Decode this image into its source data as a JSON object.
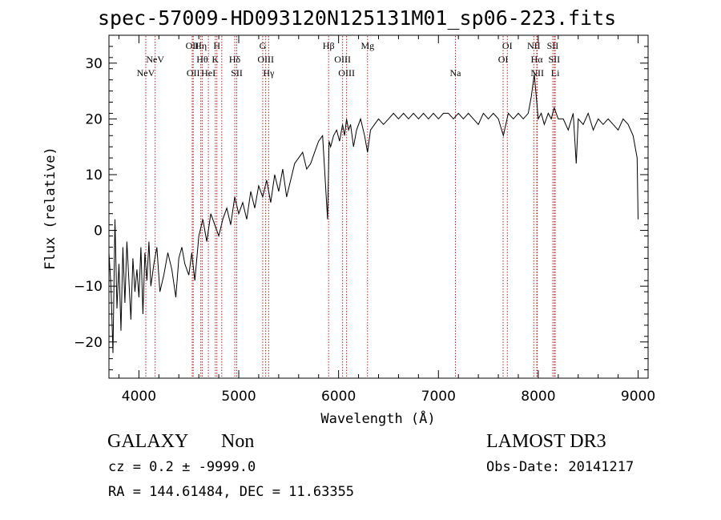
{
  "title": "spec-57009-HD093120N125131M01_sp06-223.fits",
  "footer": {
    "class": "GALAXY",
    "subclass": "Non",
    "cz": "cz = 0.2 ± -9999.0",
    "radec": "RA = 144.61484, DEC =  11.63355",
    "survey": "LAMOST DR3",
    "obsdate": "Obs-Date: 20141217"
  },
  "colors": {
    "line_marker": "#b22222",
    "spectrum": "#000000",
    "axes": "#000000"
  },
  "chart_data": {
    "type": "line",
    "title": "spec-57009-HD093120N125131M01_sp06-223.fits",
    "xlabel": "Wavelength (Å)",
    "ylabel": "Flux (relative)",
    "xlim": [
      3700,
      9100
    ],
    "ylim": [
      -26.5,
      35
    ],
    "xticks": [
      4000,
      5000,
      6000,
      7000,
      8000,
      9000
    ],
    "yticks": [
      -20,
      -10,
      0,
      10,
      20,
      30
    ],
    "series": [
      {
        "name": "flux",
        "x": [
          3700,
          3720,
          3740,
          3760,
          3780,
          3800,
          3820,
          3840,
          3860,
          3880,
          3900,
          3920,
          3940,
          3960,
          3980,
          4000,
          4020,
          4040,
          4060,
          4080,
          4100,
          4120,
          4150,
          4180,
          4210,
          4250,
          4290,
          4330,
          4370,
          4400,
          4430,
          4460,
          4500,
          4530,
          4560,
          4600,
          4640,
          4680,
          4720,
          4760,
          4800,
          4840,
          4880,
          4920,
          4960,
          5000,
          5040,
          5080,
          5120,
          5160,
          5200,
          5240,
          5280,
          5320,
          5360,
          5400,
          5440,
          5480,
          5520,
          5560,
          5600,
          5640,
          5680,
          5720,
          5760,
          5800,
          5840,
          5870,
          5890,
          5905,
          5920,
          5950,
          5980,
          6010,
          6040,
          6060,
          6080,
          6100,
          6120,
          6150,
          6180,
          6220,
          6260,
          6290,
          6320,
          6360,
          6400,
          6450,
          6500,
          6550,
          6600,
          6650,
          6700,
          6750,
          6800,
          6850,
          6900,
          6950,
          7000,
          7050,
          7100,
          7150,
          7200,
          7250,
          7300,
          7350,
          7400,
          7450,
          7500,
          7550,
          7600,
          7650,
          7700,
          7750,
          7800,
          7850,
          7900,
          7930,
          7960,
          7980,
          8000,
          8030,
          8060,
          8100,
          8130,
          8160,
          8200,
          8250,
          8300,
          8350,
          8380,
          8400,
          8450,
          8500,
          8550,
          8600,
          8650,
          8700,
          8750,
          8800,
          8850,
          8900,
          8950,
          8990,
          9000
        ],
        "values": [
          -4,
          -10,
          -22,
          2,
          -14,
          -6,
          -18,
          -3,
          -13,
          -2,
          -9,
          -16,
          -5,
          -11,
          -7,
          -12,
          -3,
          -15,
          -4,
          -9,
          -2,
          -10,
          -6,
          -3,
          -11,
          -8,
          -4,
          -7,
          -12,
          -5,
          -3,
          -6,
          -8,
          -4,
          -9,
          -1,
          2,
          -2,
          3,
          1,
          -1,
          2,
          4,
          1,
          6,
          3,
          5,
          2,
          7,
          4,
          8,
          6,
          9,
          5,
          10,
          7,
          11,
          6,
          9,
          12,
          13,
          14,
          11,
          12,
          14,
          16,
          17,
          8,
          2,
          16,
          15,
          17,
          18,
          16,
          19,
          17,
          20,
          18,
          19,
          15,
          18,
          20,
          17,
          14,
          18,
          19,
          20,
          19,
          20,
          21,
          20,
          21,
          20,
          21,
          20,
          21,
          20,
          21,
          20,
          21,
          21,
          20,
          21,
          20,
          21,
          20,
          19,
          21,
          20,
          21,
          20,
          17,
          21,
          20,
          21,
          20,
          21,
          24,
          28,
          24,
          20,
          21,
          19,
          21,
          20,
          22,
          20,
          20,
          18,
          21,
          12,
          20,
          19,
          21,
          18,
          20,
          19,
          20,
          19,
          18,
          20,
          19,
          17,
          13,
          2
        ]
      }
    ],
    "line_markers": [
      {
        "wavelength": 4069,
        "label": "NeV",
        "row": 2
      },
      {
        "wavelength": 4163,
        "label": "NeV",
        "row": 1
      },
      {
        "wavelength": 4534,
        "label": "OII",
        "row": 0
      },
      {
        "wavelength": 4544,
        "label": "OII",
        "row": 2
      },
      {
        "wavelength": 4620,
        "label": "Hη",
        "row": 0
      },
      {
        "wavelength": 4634,
        "label": "Hθ",
        "row": 1
      },
      {
        "wavelength": 4696,
        "label": "HeI",
        "row": 2
      },
      {
        "wavelength": 4781,
        "label": "H",
        "row": 0
      },
      {
        "wavelength": 4765,
        "label": "K",
        "row": 1
      },
      {
        "wavelength": 4830,
        "label": "",
        "row": 1
      },
      {
        "wavelength": 4960,
        "label": "Hδ",
        "row": 1
      },
      {
        "wavelength": 4980,
        "label": "SII",
        "row": 2
      },
      {
        "wavelength": 5240,
        "label": "G",
        "row": 0
      },
      {
        "wavelength": 5270,
        "label": "OIII",
        "row": 1
      },
      {
        "wavelength": 5300,
        "label": "Hγ",
        "row": 2
      },
      {
        "wavelength": 5900,
        "label": "Hβ",
        "row": 0
      },
      {
        "wavelength": 6040,
        "label": "OIII",
        "row": 1
      },
      {
        "wavelength": 6080,
        "label": "OIII",
        "row": 2
      },
      {
        "wavelength": 6290,
        "label": "Mg",
        "row": 0
      },
      {
        "wavelength": 7170,
        "label": "Na",
        "row": 2
      },
      {
        "wavelength": 7648,
        "label": "OI",
        "row": 1
      },
      {
        "wavelength": 7690,
        "label": "OI",
        "row": 0
      },
      {
        "wavelength": 7955,
        "label": "NII",
        "row": 0
      },
      {
        "wavelength": 7985,
        "label": "Hα",
        "row": 1
      },
      {
        "wavelength": 7990,
        "label": "NII",
        "row": 2
      },
      {
        "wavelength": 8145,
        "label": "SII",
        "row": 0
      },
      {
        "wavelength": 8160,
        "label": "SII",
        "row": 1
      },
      {
        "wavelength": 8170,
        "label": "Li",
        "row": 2
      }
    ]
  }
}
